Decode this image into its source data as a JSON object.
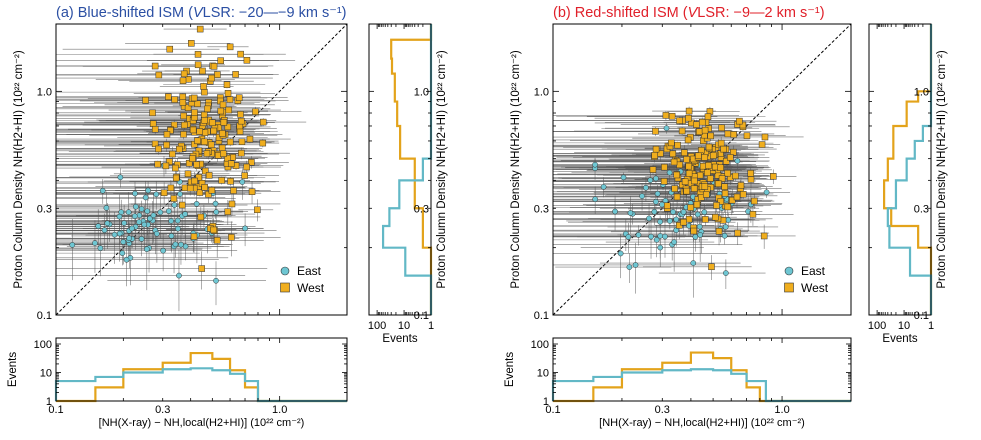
{
  "colors": {
    "east": "#6ec6d2",
    "west": "#f0ae1e",
    "east_line": "#62b8c6",
    "west_line": "#e3a31b",
    "title_a": "#2b4fa3",
    "title_b": "#e0202a",
    "error_bar": "#555555",
    "axis": "#000000"
  },
  "chart_data": [
    {
      "panel": "a",
      "type": "scatter",
      "title_prefix": "(a) Blue-shifted ISM (",
      "title_v": "V",
      "title_suffix": "LSR: −20—−9 km s⁻¹)",
      "xlabel": "[NH(X-ray) − NH,local(H2+HI)] (10²² cm⁻²)",
      "ylabel": "Proton Column Density NH(H2+HI) (10²² cm⁻²)",
      "xlim": [
        0.1,
        2.0
      ],
      "ylim": [
        0.1,
        2.0
      ],
      "scale": "log",
      "xticks": [
        {
          "v": 0.1,
          "label": "0.1"
        },
        {
          "v": 0.3,
          "label": "0.3"
        },
        {
          "v": 1.0,
          "label": "1.0"
        }
      ],
      "yticks": [
        {
          "v": 0.1,
          "label": "0.1"
        },
        {
          "v": 0.3,
          "label": "0.3"
        },
        {
          "v": 1.0,
          "label": "1.0"
        }
      ],
      "legend": {
        "position": "bottom-right",
        "entries": [
          "East",
          "West"
        ]
      },
      "east_scatter": {
        "center": [
          0.28,
          0.25
        ],
        "spread": [
          0.24,
          0.12
        ],
        "count": 80,
        "xerr": 0.3,
        "yerr": 0.05
      },
      "west_scatter": {
        "center": [
          0.46,
          0.62
        ],
        "spread": [
          0.17,
          0.24
        ],
        "count": 190,
        "xerr": 0.35,
        "yerr": 0.03
      },
      "x_hist": {
        "ylabel": "Events",
        "ylim": [
          1,
          100
        ],
        "yticks": [
          {
            "v": 1,
            "label": "1"
          },
          {
            "v": 10,
            "label": "10"
          },
          {
            "v": 100,
            "label": "100"
          }
        ],
        "east": {
          "edges": [
            0.1,
            0.15,
            0.2,
            0.3,
            0.4,
            0.5,
            0.6,
            0.7,
            0.8,
            2.0
          ],
          "counts": [
            5,
            7,
            10,
            13,
            14,
            12,
            9,
            5,
            1
          ]
        },
        "west": {
          "edges": [
            0.1,
            0.15,
            0.2,
            0.3,
            0.4,
            0.5,
            0.6,
            0.7,
            0.8,
            2.0
          ],
          "counts": [
            1,
            3,
            13,
            22,
            48,
            30,
            12,
            3,
            1
          ]
        }
      },
      "y_hist": {
        "xlabel": "Events",
        "xlim": [
          1,
          200
        ],
        "xticks": [
          {
            "v": 100,
            "label": "100"
          },
          {
            "v": 10,
            "label": "10"
          },
          {
            "v": 1,
            "label": "1"
          }
        ],
        "yticks": [
          {
            "v": 0.1,
            "label": "0.1"
          },
          {
            "v": 0.3,
            "label": "0.3"
          },
          {
            "v": 1.0,
            "label": "1.0"
          }
        ],
        "east": {
          "edges": [
            0.1,
            0.15,
            0.2,
            0.25,
            0.3,
            0.4,
            0.5,
            2.0
          ],
          "counts": [
            1,
            9,
            60,
            35,
            15,
            2,
            1
          ]
        },
        "west": {
          "edges": [
            0.1,
            0.2,
            0.3,
            0.5,
            0.7,
            0.9,
            1.2,
            1.4,
            1.55,
            1.7,
            2.0
          ],
          "counts": [
            1,
            2,
            4,
            14,
            18,
            22,
            28,
            30,
            30,
            1
          ]
        }
      }
    },
    {
      "panel": "b",
      "type": "scatter",
      "title_prefix": "(b) Red-shifted ISM (",
      "title_v": "V",
      "title_suffix": "LSR: −9—2 km s⁻¹)",
      "xlabel": "[NH(X-ray) − NH,local(H2+HI)] (10²² cm⁻²)",
      "ylabel": "Proton Column Density NH(H2+HI) (10²² cm⁻²)",
      "xlim": [
        0.1,
        2.0
      ],
      "ylim": [
        0.1,
        2.0
      ],
      "scale": "log",
      "xticks": [
        {
          "v": 0.1,
          "label": "0.1"
        },
        {
          "v": 0.3,
          "label": "0.3"
        },
        {
          "v": 1.0,
          "label": "1.0"
        }
      ],
      "yticks": [
        {
          "v": 0.1,
          "label": "0.1"
        },
        {
          "v": 0.3,
          "label": "0.3"
        },
        {
          "v": 1.0,
          "label": "1.0"
        }
      ],
      "legend": {
        "position": "bottom-right",
        "entries": [
          "East",
          "West"
        ]
      },
      "east_scatter": {
        "center": [
          0.34,
          0.3
        ],
        "spread": [
          0.22,
          0.15
        ],
        "count": 80,
        "xerr": 0.3,
        "yerr": 0.04
      },
      "west_scatter": {
        "center": [
          0.46,
          0.46
        ],
        "spread": [
          0.14,
          0.16
        ],
        "count": 190,
        "xerr": 0.3,
        "yerr": 0.03
      },
      "x_hist": {
        "ylabel": "Events",
        "ylim": [
          1,
          100
        ],
        "yticks": [
          {
            "v": 1,
            "label": "1"
          },
          {
            "v": 10,
            "label": "10"
          },
          {
            "v": 100,
            "label": "100"
          }
        ],
        "east": {
          "edges": [
            0.1,
            0.15,
            0.2,
            0.3,
            0.4,
            0.5,
            0.6,
            0.7,
            0.85,
            2.0
          ],
          "counts": [
            5,
            7,
            10,
            12,
            13,
            12,
            9,
            5,
            1
          ]
        },
        "west": {
          "edges": [
            0.1,
            0.15,
            0.2,
            0.3,
            0.4,
            0.5,
            0.6,
            0.7,
            0.8,
            2.0
          ],
          "counts": [
            1,
            3,
            13,
            22,
            50,
            32,
            12,
            3,
            1
          ]
        }
      },
      "y_hist": {
        "xlabel": "Events",
        "xlim": [
          1,
          200
        ],
        "xticks": [
          {
            "v": 100,
            "label": "100"
          },
          {
            "v": 10,
            "label": "10"
          },
          {
            "v": 1,
            "label": "1"
          }
        ],
        "yticks": [
          {
            "v": 0.1,
            "label": "0.1"
          },
          {
            "v": 0.3,
            "label": "0.3"
          },
          {
            "v": 1.0,
            "label": "1.0"
          }
        ],
        "east": {
          "edges": [
            0.1,
            0.15,
            0.2,
            0.25,
            0.3,
            0.4,
            0.5,
            0.6,
            0.7,
            0.8,
            2.0
          ],
          "counts": [
            1,
            6,
            35,
            40,
            20,
            8,
            4,
            2,
            1,
            1
          ]
        },
        "west": {
          "edges": [
            0.1,
            0.2,
            0.25,
            0.3,
            0.4,
            0.5,
            0.7,
            0.9,
            1.0,
            2.0
          ],
          "counts": [
            1,
            3,
            30,
            55,
            40,
            25,
            8,
            3,
            1
          ]
        }
      }
    }
  ]
}
